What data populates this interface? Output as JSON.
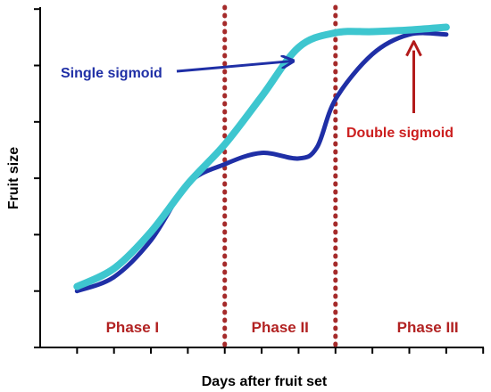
{
  "chart_data": {
    "type": "line",
    "title": "",
    "xlabel": "Days after fruit set",
    "ylabel": "Fruit size",
    "xlim": [
      0,
      12
    ],
    "ylim": [
      0,
      6
    ],
    "grid": false,
    "xticks": [
      1,
      2,
      3,
      4,
      5,
      6,
      7,
      8,
      9,
      10,
      11,
      12
    ],
    "yticks": [
      0,
      1,
      2,
      3,
      4,
      5,
      6
    ],
    "series": [
      {
        "name": "Single sigmoid",
        "color": "#3ec6cf",
        "x": [
          1,
          2,
          3,
          4,
          5,
          6,
          7,
          8,
          9,
          10,
          11
        ],
        "y": [
          1.08,
          1.4,
          2.05,
          2.9,
          3.6,
          4.45,
          5.32,
          5.58,
          5.6,
          5.63,
          5.68
        ]
      },
      {
        "name": "Double sigmoid",
        "color": "#1f2fa6",
        "x": [
          1,
          2,
          3,
          4,
          5,
          6,
          7,
          7.5,
          8,
          9,
          10,
          11
        ],
        "y": [
          1.0,
          1.25,
          1.9,
          2.9,
          3.25,
          3.45,
          3.35,
          3.55,
          4.4,
          5.2,
          5.55,
          5.55
        ]
      }
    ],
    "phase_boundaries": [
      5,
      8
    ],
    "phase_boundary_color": "#a52a2a",
    "phases": [
      {
        "label": "Phase I",
        "center": 2.5
      },
      {
        "label": "Phase II",
        "center": 6.5
      },
      {
        "label": "Phase III",
        "center": 10.5
      }
    ],
    "annotations": [
      {
        "text": "Single sigmoid",
        "color": "#1f2fa6",
        "arrow_color": "#1f2fa6",
        "arrow_target": [
          7,
          5.08
        ]
      },
      {
        "text": "Double sigmoid",
        "color": "#cc1f1f",
        "arrow_color": "#b31b1b",
        "arrow_target": [
          10,
          5.55
        ]
      }
    ]
  }
}
